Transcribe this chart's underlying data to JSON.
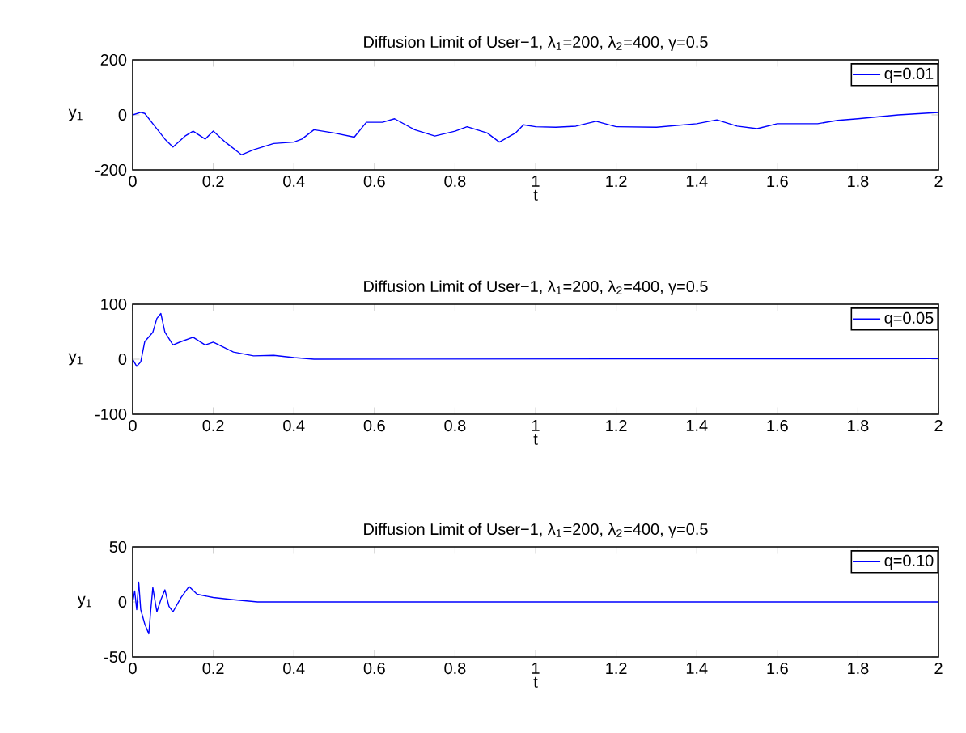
{
  "chart_data": [
    {
      "type": "line",
      "title": "Diffusion Limit of User−1, λ$_{1}$=200, λ$_{2}$=400, γ=0.5",
      "xlabel": "t",
      "ylabel": "y$_{1}$",
      "legend": "top right",
      "xlim": [
        0,
        2
      ],
      "ylim": [
        -200,
        200
      ],
      "xticks": [
        0,
        0.2,
        0.4,
        0.6,
        0.8,
        1,
        1.2,
        1.4,
        1.6,
        1.8,
        2
      ],
      "yticks": [
        -200,
        0,
        200
      ],
      "x": [
        0,
        0.02,
        0.03,
        0.05,
        0.08,
        0.1,
        0.13,
        0.15,
        0.18,
        0.2,
        0.23,
        0.27,
        0.3,
        0.35,
        0.4,
        0.42,
        0.45,
        0.5,
        0.55,
        0.58,
        0.62,
        0.65,
        0.7,
        0.75,
        0.8,
        0.83,
        0.88,
        0.91,
        0.95,
        0.97,
        1.0,
        1.05,
        1.1,
        1.15,
        1.2,
        1.3,
        1.4,
        1.45,
        1.5,
        1.55,
        1.6,
        1.7,
        1.75,
        1.8,
        1.9,
        2.0
      ],
      "series": [
        {
          "name": "q=0.01",
          "color": "#0000ff",
          "values": [
            0,
            9,
            5,
            -32,
            -88,
            -117,
            -77,
            -59,
            -88,
            -59,
            -99,
            -145,
            -127,
            -104,
            -99,
            -88,
            -54,
            -66,
            -81,
            -27,
            -27,
            -14,
            -54,
            -77,
            -59,
            -43,
            -66,
            -99,
            -66,
            -36,
            -43,
            -45,
            -41,
            -23,
            -43,
            -45,
            -32,
            -18,
            -41,
            -50,
            -32,
            -32,
            -20,
            -14,
            0,
            9
          ]
        }
      ]
    },
    {
      "type": "line",
      "title": "Diffusion Limit of User−1, λ$_{1}$=200, λ$_{2}$=400, γ=0.5",
      "xlabel": "t",
      "ylabel": "y$_{1}$",
      "legend": "top right",
      "xlim": [
        0,
        2
      ],
      "ylim": [
        -100,
        100
      ],
      "xticks": [
        0,
        0.2,
        0.4,
        0.6,
        0.8,
        1,
        1.2,
        1.4,
        1.6,
        1.8,
        2
      ],
      "yticks": [
        -100,
        0,
        100
      ],
      "x": [
        0,
        0.01,
        0.02,
        0.03,
        0.05,
        0.06,
        0.07,
        0.08,
        0.1,
        0.12,
        0.15,
        0.18,
        0.2,
        0.25,
        0.3,
        0.35,
        0.4,
        0.45,
        2
      ],
      "series": [
        {
          "name": "q=0.05",
          "color": "#0000ff",
          "values": [
            0,
            -13,
            -5,
            32,
            49,
            74,
            83,
            49,
            26,
            32,
            40,
            26,
            31,
            13,
            6,
            7,
            3,
            0,
            1
          ]
        }
      ]
    },
    {
      "type": "line",
      "title": "Diffusion Limit of User−1, λ$_{1}$=200, λ$_{2}$=400, γ=0.5",
      "xlabel": "t",
      "ylabel": "y$_{1}$",
      "legend": "top right",
      "xlim": [
        0,
        2
      ],
      "ylim": [
        -50,
        50
      ],
      "xticks": [
        0,
        0.2,
        0.4,
        0.6,
        0.8,
        1,
        1.2,
        1.4,
        1.6,
        1.8,
        2
      ],
      "yticks": [
        -50,
        0,
        50
      ],
      "x": [
        0,
        0.005,
        0.01,
        0.015,
        0.02,
        0.03,
        0.04,
        0.045,
        0.05,
        0.06,
        0.07,
        0.08,
        0.09,
        0.1,
        0.12,
        0.14,
        0.16,
        0.2,
        0.25,
        0.31,
        2
      ],
      "series": [
        {
          "name": "q=0.10",
          "color": "#0000ff",
          "values": [
            0,
            10,
            -7,
            18,
            -7,
            -20,
            -29,
            -7,
            13,
            -9,
            2,
            11,
            -4,
            -9,
            4,
            14,
            7,
            4,
            2,
            0,
            0
          ]
        }
      ]
    }
  ]
}
